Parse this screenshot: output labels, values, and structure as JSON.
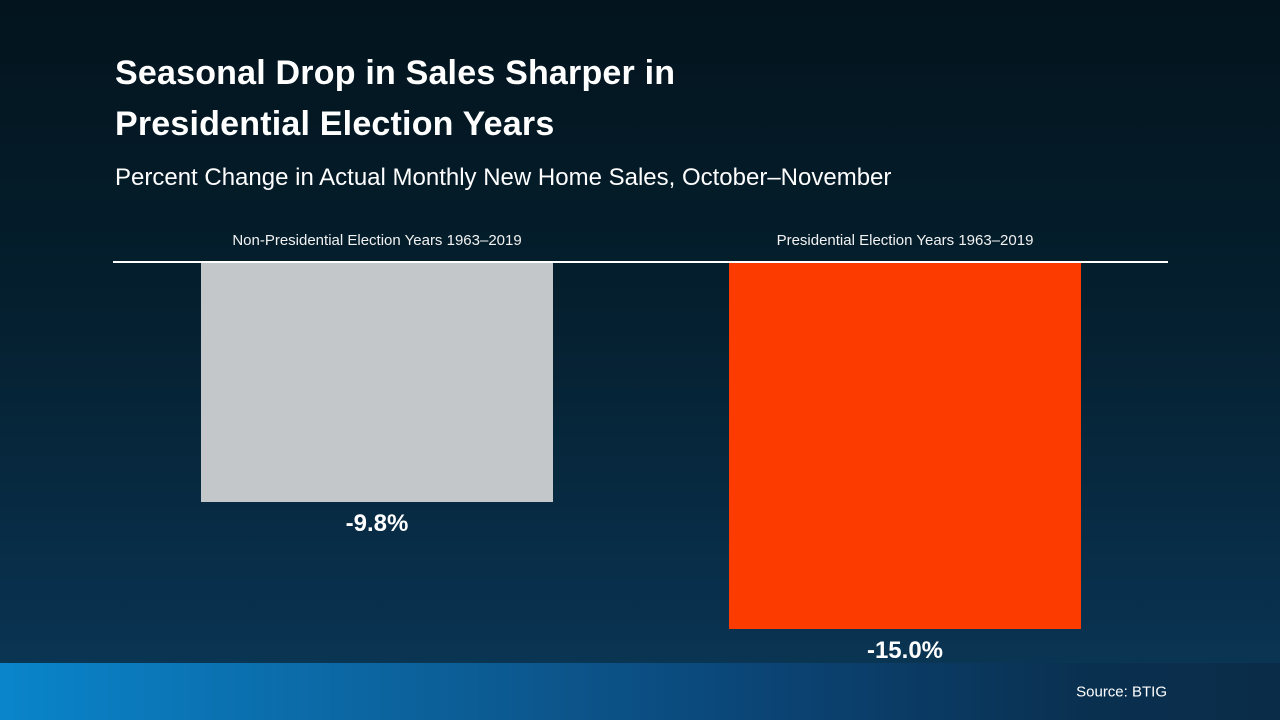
{
  "header": {
    "title_lines": [
      "Seasonal Drop in Sales Sharper in",
      "Presidential Election Years"
    ],
    "subtitle": "Percent Change in Actual Monthly New Home Sales, October–November"
  },
  "footer": {
    "source": "Source: BTIG"
  },
  "colors": {
    "background_top": "#03141d",
    "background_bottom": "#0d3c58",
    "baseline": "#ffffff",
    "footer_left_blue": "#0a85cb",
    "footer_right_navy": "#0a2c48"
  },
  "chart_data": {
    "type": "bar",
    "title": "Seasonal Drop in Sales Sharper in Presidential Election Years",
    "subtitle": "Percent Change in Actual Monthly New Home Sales, October–November",
    "categories": [
      "Non-Presidential Election Years 1963–2019",
      "Presidential Election Years 1963–2019"
    ],
    "values": [
      -9.8,
      -15.0
    ],
    "value_labels": [
      "-9.8%",
      "-15.0%"
    ],
    "unit": "percent",
    "ylim": [
      -15.0,
      0
    ],
    "orientation": "vertical",
    "bars_extend": "downward-from-zero-baseline",
    "grid": false,
    "legend": false,
    "colors": [
      "#c3c7c9",
      "#fb3b00"
    ],
    "source": "Source: BTIG"
  }
}
